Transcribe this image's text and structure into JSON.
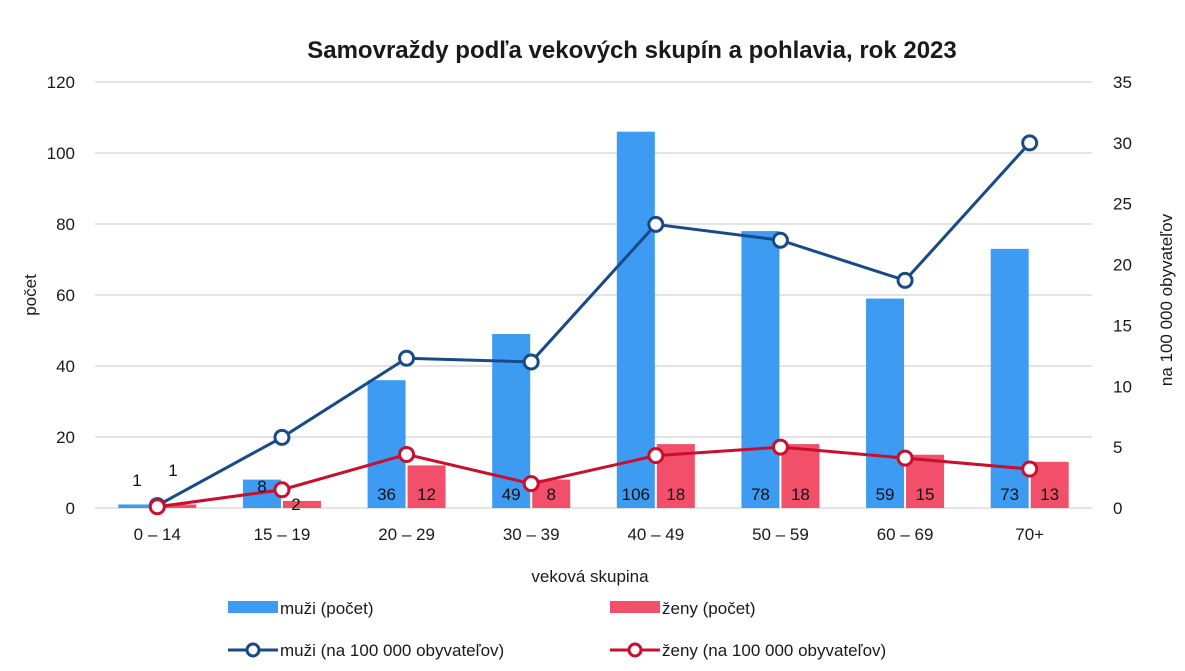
{
  "chart_data": {
    "type": "bar",
    "title": "Samovraždy podľa vekových skupín a pohlavia, rok 2023",
    "xlabel": "veková  skupina",
    "ylabel": "počet",
    "y2label": "na 100 000 obyvateľov",
    "ylim": [
      0,
      120
    ],
    "y2lim": [
      0,
      35
    ],
    "yticks": [
      "0",
      "20",
      "40",
      "60",
      "80",
      "100",
      "120"
    ],
    "y2ticks": [
      "0",
      "5",
      "10",
      "15",
      "20",
      "25",
      "30",
      "35"
    ],
    "grid": true,
    "legend_position": "bottom",
    "categories": [
      "0 – 14",
      "15 – 19",
      "20 – 29",
      "30 – 39",
      "40 – 49",
      "50 – 59",
      "60 – 69",
      "70+"
    ],
    "series": [
      {
        "name": "muži (počet)",
        "type": "bar",
        "axis": "left",
        "color": "#3d9bf2",
        "values": [
          1,
          8,
          36,
          49,
          106,
          78,
          59,
          73
        ],
        "labels": [
          "1",
          "8",
          "36",
          "49",
          "106",
          "78",
          "59",
          "73"
        ]
      },
      {
        "name": "ženy (počet)",
        "type": "bar",
        "axis": "left",
        "color": "#f2506a",
        "values": [
          1,
          2,
          12,
          8,
          18,
          18,
          15,
          13
        ],
        "labels": [
          "1",
          "2",
          "12",
          "8",
          "18",
          "18",
          "15",
          "13"
        ]
      },
      {
        "name": "muži (na 100 000 obyvateľov)",
        "type": "line",
        "axis": "right",
        "color": "#174a87",
        "values": [
          0.2,
          5.8,
          12.3,
          12.0,
          23.3,
          22.0,
          18.7,
          30.0
        ]
      },
      {
        "name": "ženy (na 100 000 obyvateľov)",
        "type": "line",
        "axis": "right",
        "color": "#c8102e",
        "values": [
          0.1,
          1.5,
          4.4,
          2.0,
          4.3,
          5.0,
          4.1,
          3.2
        ]
      }
    ]
  }
}
